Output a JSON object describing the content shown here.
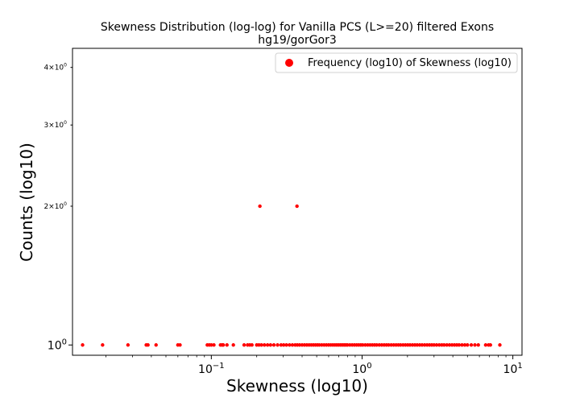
{
  "chart_data": {
    "type": "scatter",
    "title_line1": "Skewness Distribution (log-log) for Vanilla PCS (L>=20) filtered Exons",
    "title_line2": "hg19/gorGor3",
    "xlabel": "Skewness (log10)",
    "ylabel": "Counts (log10)",
    "xscale": "log",
    "yscale": "log",
    "xlim": [
      0.012,
      11.5
    ],
    "ylim": [
      0.95,
      4.4
    ],
    "grid": false,
    "legend_position": "upper-right",
    "marker_color": "#ff0000",
    "x_ticks": [
      {
        "value": 0.1,
        "base": "10",
        "exp": "−1"
      },
      {
        "value": 1,
        "base": "10",
        "exp": "0"
      },
      {
        "value": 10,
        "base": "10",
        "exp": "1"
      }
    ],
    "y_ticks": [
      {
        "value": 1,
        "base": "10",
        "exp": "0",
        "mult": "",
        "small": false
      },
      {
        "value": 2,
        "base": "10",
        "exp": "0",
        "mult": "2×",
        "small": true
      },
      {
        "value": 3,
        "base": "10",
        "exp": "0",
        "mult": "3×",
        "small": true
      },
      {
        "value": 4,
        "base": "10",
        "exp": "0",
        "mult": "4×",
        "small": true
      }
    ],
    "series": [
      {
        "name": "Frequency (log10) of Skewness (log10)",
        "points": [
          {
            "x": 0.014,
            "y": 1
          },
          {
            "x": 0.019,
            "y": 1
          },
          {
            "x": 0.028,
            "y": 1
          },
          {
            "x": 0.037,
            "y": 1
          },
          {
            "x": 0.038,
            "y": 1
          },
          {
            "x": 0.043,
            "y": 1
          },
          {
            "x": 0.06,
            "y": 1
          },
          {
            "x": 0.062,
            "y": 1
          },
          {
            "x": 0.094,
            "y": 1
          },
          {
            "x": 0.097,
            "y": 1
          },
          {
            "x": 0.1,
            "y": 1
          },
          {
            "x": 0.104,
            "y": 1
          },
          {
            "x": 0.115,
            "y": 1
          },
          {
            "x": 0.118,
            "y": 1
          },
          {
            "x": 0.12,
            "y": 1
          },
          {
            "x": 0.127,
            "y": 1
          },
          {
            "x": 0.14,
            "y": 1
          },
          {
            "x": 0.165,
            "y": 1
          },
          {
            "x": 0.174,
            "y": 1
          },
          {
            "x": 0.18,
            "y": 1
          },
          {
            "x": 0.186,
            "y": 1
          },
          {
            "x": 0.2,
            "y": 1
          },
          {
            "x": 0.207,
            "y": 1
          },
          {
            "x": 0.215,
            "y": 1
          },
          {
            "x": 0.225,
            "y": 1
          },
          {
            "x": 0.236,
            "y": 1
          },
          {
            "x": 0.247,
            "y": 1
          },
          {
            "x": 0.26,
            "y": 1
          },
          {
            "x": 0.275,
            "y": 1
          },
          {
            "x": 0.29,
            "y": 1
          },
          {
            "x": 0.302,
            "y": 1
          },
          {
            "x": 0.315,
            "y": 1
          },
          {
            "x": 0.33,
            "y": 1
          },
          {
            "x": 0.345,
            "y": 1
          },
          {
            "x": 0.36,
            "y": 1
          },
          {
            "x": 0.372,
            "y": 1
          },
          {
            "x": 0.385,
            "y": 1
          },
          {
            "x": 0.4,
            "y": 1
          },
          {
            "x": 0.415,
            "y": 1
          },
          {
            "x": 0.43,
            "y": 1
          },
          {
            "x": 0.445,
            "y": 1
          },
          {
            "x": 0.46,
            "y": 1
          },
          {
            "x": 0.475,
            "y": 1
          },
          {
            "x": 0.49,
            "y": 1
          },
          {
            "x": 0.505,
            "y": 1
          },
          {
            "x": 0.52,
            "y": 1
          },
          {
            "x": 0.54,
            "y": 1
          },
          {
            "x": 0.56,
            "y": 1
          },
          {
            "x": 0.58,
            "y": 1
          },
          {
            "x": 0.6,
            "y": 1
          },
          {
            "x": 0.62,
            "y": 1
          },
          {
            "x": 0.64,
            "y": 1
          },
          {
            "x": 0.66,
            "y": 1
          },
          {
            "x": 0.68,
            "y": 1
          },
          {
            "x": 0.7,
            "y": 1
          },
          {
            "x": 0.72,
            "y": 1
          },
          {
            "x": 0.74,
            "y": 1
          },
          {
            "x": 0.76,
            "y": 1
          },
          {
            "x": 0.78,
            "y": 1
          },
          {
            "x": 0.8,
            "y": 1
          },
          {
            "x": 0.83,
            "y": 1
          },
          {
            "x": 0.86,
            "y": 1
          },
          {
            "x": 0.89,
            "y": 1
          },
          {
            "x": 0.92,
            "y": 1
          },
          {
            "x": 0.95,
            "y": 1
          },
          {
            "x": 0.98,
            "y": 1
          },
          {
            "x": 1.01,
            "y": 1
          },
          {
            "x": 1.05,
            "y": 1
          },
          {
            "x": 1.09,
            "y": 1
          },
          {
            "x": 1.13,
            "y": 1
          },
          {
            "x": 1.17,
            "y": 1
          },
          {
            "x": 1.21,
            "y": 1
          },
          {
            "x": 1.25,
            "y": 1
          },
          {
            "x": 1.3,
            "y": 1
          },
          {
            "x": 1.35,
            "y": 1
          },
          {
            "x": 1.4,
            "y": 1
          },
          {
            "x": 1.45,
            "y": 1
          },
          {
            "x": 1.5,
            "y": 1
          },
          {
            "x": 1.56,
            "y": 1
          },
          {
            "x": 1.62,
            "y": 1
          },
          {
            "x": 1.68,
            "y": 1
          },
          {
            "x": 1.74,
            "y": 1
          },
          {
            "x": 1.8,
            "y": 1
          },
          {
            "x": 1.87,
            "y": 1
          },
          {
            "x": 1.94,
            "y": 1
          },
          {
            "x": 2.01,
            "y": 1
          },
          {
            "x": 2.08,
            "y": 1
          },
          {
            "x": 2.16,
            "y": 1
          },
          {
            "x": 2.24,
            "y": 1
          },
          {
            "x": 2.32,
            "y": 1
          },
          {
            "x": 2.41,
            "y": 1
          },
          {
            "x": 2.5,
            "y": 1
          },
          {
            "x": 2.6,
            "y": 1
          },
          {
            "x": 2.7,
            "y": 1
          },
          {
            "x": 2.8,
            "y": 1
          },
          {
            "x": 2.9,
            "y": 1
          },
          {
            "x": 3.0,
            "y": 1
          },
          {
            "x": 3.12,
            "y": 1
          },
          {
            "x": 3.25,
            "y": 1
          },
          {
            "x": 3.38,
            "y": 1
          },
          {
            "x": 3.5,
            "y": 1
          },
          {
            "x": 3.65,
            "y": 1
          },
          {
            "x": 3.8,
            "y": 1
          },
          {
            "x": 3.95,
            "y": 1
          },
          {
            "x": 4.1,
            "y": 1
          },
          {
            "x": 4.25,
            "y": 1
          },
          {
            "x": 4.4,
            "y": 1
          },
          {
            "x": 4.6,
            "y": 1
          },
          {
            "x": 4.8,
            "y": 1
          },
          {
            "x": 5.0,
            "y": 1
          },
          {
            "x": 5.3,
            "y": 1
          },
          {
            "x": 5.6,
            "y": 1
          },
          {
            "x": 5.9,
            "y": 1
          },
          {
            "x": 6.6,
            "y": 1
          },
          {
            "x": 6.9,
            "y": 1
          },
          {
            "x": 7.1,
            "y": 1
          },
          {
            "x": 8.2,
            "y": 1
          },
          {
            "x": 0.21,
            "y": 2
          },
          {
            "x": 0.37,
            "y": 2
          }
        ]
      }
    ]
  }
}
